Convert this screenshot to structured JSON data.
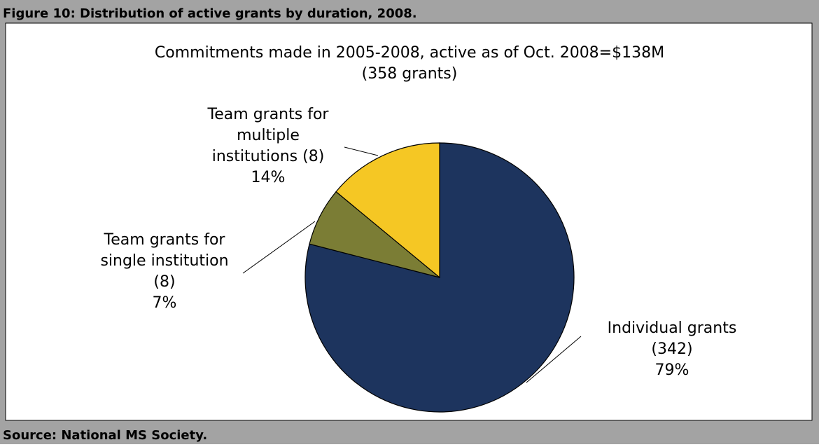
{
  "figure_title": "Figure 10: Distribution of active grants by duration, 2008.",
  "source": "Source: National MS Society.",
  "chart_data": {
    "type": "pie",
    "title": "Commitments made in 2005-2008, active as of Oct. 2008=$138M",
    "subtitle": "(358 grants)",
    "categories": [
      [
        "Individual grants",
        "(342)"
      ],
      [
        "Team grants for",
        "single institution",
        "(8)"
      ],
      [
        "Team grants for",
        "multiple",
        "institutions (8)"
      ]
    ],
    "values": [
      79,
      7,
      14
    ],
    "value_labels": [
      "79%",
      "7%",
      "14%"
    ],
    "colors": [
      "#1d345e",
      "#7b7d35",
      "#f5c724"
    ]
  }
}
